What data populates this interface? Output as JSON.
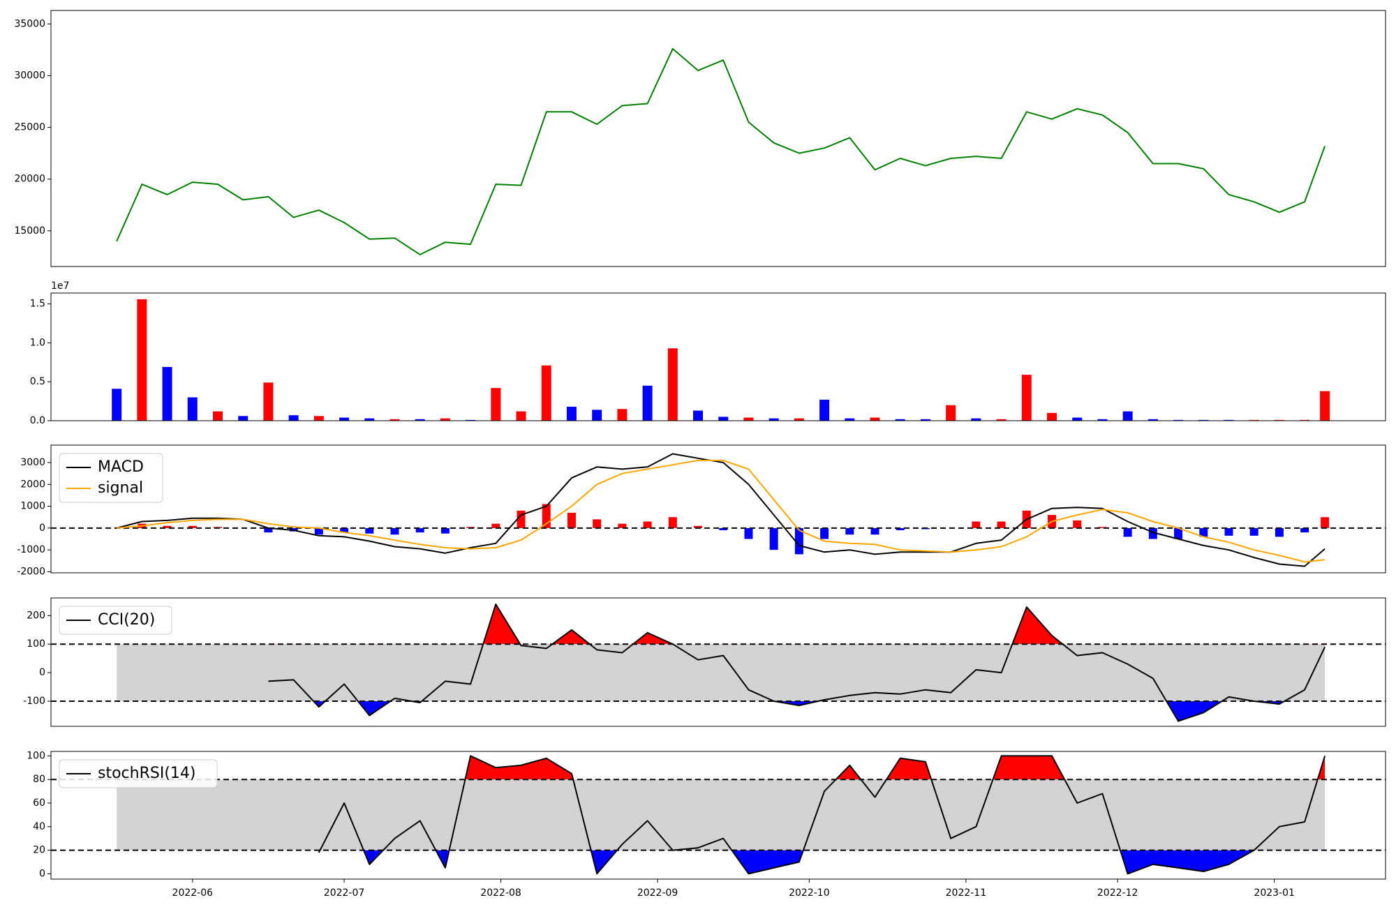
{
  "chart_data": [
    {
      "type": "line",
      "color": "green",
      "x": [
        "2022-05-17",
        "2022-05-22",
        "2022-05-27",
        "2022-06-01",
        "2022-06-06",
        "2022-06-11",
        "2022-06-16",
        "2022-06-21",
        "2022-06-26",
        "2022-07-01",
        "2022-07-06",
        "2022-07-11",
        "2022-07-16",
        "2022-07-21",
        "2022-07-26",
        "2022-07-31",
        "2022-08-05",
        "2022-08-10",
        "2022-08-15",
        "2022-08-20",
        "2022-08-25",
        "2022-08-30",
        "2022-09-04",
        "2022-09-09",
        "2022-09-14",
        "2022-09-19",
        "2022-09-24",
        "2022-09-29",
        "2022-10-04",
        "2022-10-09",
        "2022-10-14",
        "2022-10-19",
        "2022-10-24",
        "2022-10-29",
        "2022-11-03",
        "2022-11-08",
        "2022-11-13",
        "2022-11-18",
        "2022-11-23",
        "2022-11-28",
        "2022-12-03",
        "2022-12-08",
        "2022-12-13",
        "2022-12-18",
        "2022-12-23",
        "2022-12-28",
        "2023-01-02",
        "2023-01-07",
        "2023-01-11"
      ],
      "values": [
        14000,
        19500,
        18500,
        19700,
        19500,
        18000,
        18300,
        16300,
        17000,
        15800,
        14200,
        14300,
        12700,
        13900,
        13700,
        19500,
        19400,
        26500,
        26500,
        25300,
        27100,
        27300,
        32600,
        30500,
        31500,
        25500,
        23500,
        22500,
        23000,
        24000,
        20900,
        22000,
        21300,
        22000,
        22200,
        22000,
        26500,
        25800,
        26800,
        26200,
        24500,
        21500,
        21500,
        21000,
        18500,
        17800,
        16800,
        17800,
        23200
      ],
      "xlim": [
        "2022-05-04",
        "2023-01-23"
      ],
      "ylim": [
        11550,
        36300
      ],
      "yticks": [
        15000,
        20000,
        25000,
        30000,
        35000
      ]
    },
    {
      "type": "bar",
      "offset_label": "1e7",
      "x": [
        "2022-05-17",
        "2022-05-22",
        "2022-05-27",
        "2022-06-01",
        "2022-06-06",
        "2022-06-11",
        "2022-06-16",
        "2022-06-21",
        "2022-06-26",
        "2022-07-01",
        "2022-07-06",
        "2022-07-11",
        "2022-07-16",
        "2022-07-21",
        "2022-07-26",
        "2022-07-31",
        "2022-08-05",
        "2022-08-10",
        "2022-08-15",
        "2022-08-20",
        "2022-08-25",
        "2022-08-30",
        "2022-09-04",
        "2022-09-09",
        "2022-09-14",
        "2022-09-19",
        "2022-09-24",
        "2022-09-29",
        "2022-10-04",
        "2022-10-09",
        "2022-10-14",
        "2022-10-19",
        "2022-10-24",
        "2022-10-29",
        "2022-11-03",
        "2022-11-08",
        "2022-11-13",
        "2022-11-18",
        "2022-11-23",
        "2022-11-28",
        "2022-12-03",
        "2022-12-08",
        "2022-12-13",
        "2022-12-18",
        "2022-12-23",
        "2022-12-28",
        "2023-01-02",
        "2023-01-07",
        "2023-01-11"
      ],
      "values": [
        4100000,
        15600000,
        6900000,
        3000000,
        1200000,
        600000,
        4900000,
        700000,
        600000,
        400000,
        300000,
        200000,
        200000,
        300000,
        100000,
        4200000,
        1200000,
        7100000,
        1800000,
        1400000,
        1500000,
        4500000,
        9300000,
        1300000,
        500000,
        400000,
        300000,
        300000,
        2700000,
        300000,
        400000,
        200000,
        200000,
        2000000,
        300000,
        200000,
        5900000,
        1000000,
        400000,
        200000,
        1200000,
        200000,
        100000,
        100000,
        100000,
        100000,
        100000,
        100000,
        3800000
      ],
      "colors": [
        "blue",
        "red",
        "blue",
        "blue",
        "red",
        "blue",
        "red",
        "blue",
        "red",
        "blue",
        "blue",
        "red",
        "blue",
        "red",
        "blue",
        "red",
        "red",
        "red",
        "blue",
        "blue",
        "red",
        "blue",
        "red",
        "blue",
        "blue",
        "red",
        "blue",
        "red",
        "blue",
        "blue",
        "red",
        "blue",
        "blue",
        "red",
        "blue",
        "red",
        "red",
        "red",
        "blue",
        "blue",
        "blue",
        "blue",
        "blue",
        "blue",
        "blue",
        "red",
        "red",
        "red",
        "red"
      ],
      "xlim": [
        "2022-05-04",
        "2023-01-23"
      ],
      "ylim": [
        0,
        16400000
      ],
      "yticks": [
        {
          "value": 0,
          "label": "0.0"
        },
        {
          "value": 5000000,
          "label": "0.5"
        },
        {
          "value": 10000000,
          "label": "1.0"
        },
        {
          "value": 15000000,
          "label": "1.5"
        }
      ]
    },
    {
      "type": "macd",
      "x": [
        "2022-05-17",
        "2022-05-22",
        "2022-05-27",
        "2022-06-01",
        "2022-06-06",
        "2022-06-11",
        "2022-06-16",
        "2022-06-21",
        "2022-06-26",
        "2022-07-01",
        "2022-07-06",
        "2022-07-11",
        "2022-07-16",
        "2022-07-21",
        "2022-07-26",
        "2022-07-31",
        "2022-08-05",
        "2022-08-10",
        "2022-08-15",
        "2022-08-20",
        "2022-08-25",
        "2022-08-30",
        "2022-09-04",
        "2022-09-09",
        "2022-09-14",
        "2022-09-19",
        "2022-09-24",
        "2022-09-29",
        "2022-10-04",
        "2022-10-09",
        "2022-10-14",
        "2022-10-19",
        "2022-10-24",
        "2022-10-29",
        "2022-11-03",
        "2022-11-08",
        "2022-11-13",
        "2022-11-18",
        "2022-11-23",
        "2022-11-28",
        "2022-12-03",
        "2022-12-08",
        "2022-12-13",
        "2022-12-18",
        "2022-12-23",
        "2022-12-28",
        "2023-01-02",
        "2023-01-07",
        "2023-01-11"
      ],
      "series": [
        {
          "name": "MACD",
          "color": "black",
          "values": [
            0,
            300,
            350,
            450,
            450,
            400,
            0,
            -100,
            -350,
            -400,
            -600,
            -850,
            -950,
            -1150,
            -900,
            -700,
            600,
            1000,
            2300,
            2800,
            2700,
            2800,
            3400,
            3200,
            3000,
            2000,
            600,
            -800,
            -1100,
            -1000,
            -1200,
            -1100,
            -1100,
            -1100,
            -700,
            -550,
            400,
            900,
            950,
            900,
            300,
            -200,
            -500,
            -800,
            -1000,
            -1350,
            -1650,
            -1750,
            -950
          ]
        },
        {
          "name": "signal",
          "color": "orange",
          "values": [
            0,
            100,
            250,
            350,
            400,
            400,
            200,
            50,
            0,
            -200,
            -350,
            -550,
            -750,
            -900,
            -950,
            -900,
            -550,
            200,
            1000,
            2000,
            2500,
            2700,
            2900,
            3100,
            3100,
            2700,
            1300,
            -100,
            -600,
            -700,
            -750,
            -1000,
            -1050,
            -1100,
            -1000,
            -850,
            -400,
            300,
            600,
            850,
            700,
            300,
            0,
            -400,
            -650,
            -1000,
            -1250,
            -1550,
            -1450
          ]
        }
      ],
      "histogram": [
        0,
        200,
        100,
        100,
        50,
        0,
        -200,
        -150,
        -300,
        -200,
        -250,
        -300,
        -200,
        -250,
        50,
        200,
        800,
        1100,
        700,
        400,
        200,
        300,
        500,
        100,
        -100,
        -500,
        -1000,
        -1200,
        -500,
        -300,
        -300,
        -100,
        -50,
        0,
        300,
        300,
        800,
        600,
        350,
        50,
        -400,
        -500,
        -500,
        -400,
        -350,
        -350,
        -400,
        -200,
        500
      ],
      "up_color": "red",
      "down_color": "blue",
      "hlines": [
        0
      ],
      "legend": "upper left",
      "xlim": [
        "2022-05-04",
        "2023-01-23"
      ],
      "ylim": [
        -2050,
        3800
      ],
      "yticks": [
        -2000,
        -1000,
        0,
        1000,
        2000,
        3000
      ]
    },
    {
      "type": "oscillator",
      "x": [
        "2022-05-17",
        "2022-05-22",
        "2022-05-27",
        "2022-06-01",
        "2022-06-06",
        "2022-06-11",
        "2022-06-16",
        "2022-06-21",
        "2022-06-26",
        "2022-07-01",
        "2022-07-06",
        "2022-07-11",
        "2022-07-16",
        "2022-07-21",
        "2022-07-26",
        "2022-07-31",
        "2022-08-05",
        "2022-08-10",
        "2022-08-15",
        "2022-08-20",
        "2022-08-25",
        "2022-08-30",
        "2022-09-04",
        "2022-09-09",
        "2022-09-14",
        "2022-09-19",
        "2022-09-24",
        "2022-09-29",
        "2022-10-04",
        "2022-10-09",
        "2022-10-14",
        "2022-10-19",
        "2022-10-24",
        "2022-10-29",
        "2022-11-03",
        "2022-11-08",
        "2022-11-13",
        "2022-11-18",
        "2022-11-23",
        "2022-11-28",
        "2022-12-03",
        "2022-12-08",
        "2022-12-13",
        "2022-12-18",
        "2022-12-23",
        "2022-12-28",
        "2023-01-02",
        "2023-01-07",
        "2023-01-11"
      ],
      "series": [
        {
          "name": "CCI(20)",
          "color": "black",
          "values": [
            null,
            null,
            null,
            null,
            null,
            null,
            -30,
            -25,
            -120,
            -40,
            -150,
            -90,
            -105,
            -30,
            -40,
            240,
            95,
            85,
            150,
            80,
            70,
            140,
            100,
            45,
            60,
            -60,
            -100,
            -115,
            -95,
            -80,
            -70,
            -75,
            -60,
            -70,
            10,
            0,
            230,
            130,
            60,
            70,
            30,
            -20,
            -170,
            -140,
            -85,
            -100,
            -110,
            -60,
            90
          ]
        }
      ],
      "bands": [
        -100,
        100
      ],
      "above_color": "red",
      "below_color": "blue",
      "band_color": "lightgray",
      "legend": "upper left",
      "xlim": [
        "2022-05-04",
        "2023-01-23"
      ],
      "ylim": [
        -188,
        262
      ],
      "yticks": [
        -100,
        0,
        100,
        200
      ]
    },
    {
      "type": "oscillator",
      "x": [
        "2022-05-17",
        "2022-05-22",
        "2022-05-27",
        "2022-06-01",
        "2022-06-06",
        "2022-06-11",
        "2022-06-16",
        "2022-06-21",
        "2022-06-26",
        "2022-07-01",
        "2022-07-06",
        "2022-07-11",
        "2022-07-16",
        "2022-07-21",
        "2022-07-26",
        "2022-07-31",
        "2022-08-05",
        "2022-08-10",
        "2022-08-15",
        "2022-08-20",
        "2022-08-25",
        "2022-08-30",
        "2022-09-04",
        "2022-09-09",
        "2022-09-14",
        "2022-09-19",
        "2022-09-24",
        "2022-09-29",
        "2022-10-04",
        "2022-10-09",
        "2022-10-14",
        "2022-10-19",
        "2022-10-24",
        "2022-10-29",
        "2022-11-03",
        "2022-11-08",
        "2022-11-13",
        "2022-11-18",
        "2022-11-23",
        "2022-11-28",
        "2022-12-03",
        "2022-12-08",
        "2022-12-13",
        "2022-12-18",
        "2022-12-23",
        "2022-12-28",
        "2023-01-02",
        "2023-01-07",
        "2023-01-11"
      ],
      "series": [
        {
          "name": "stochRSI(14)",
          "color": "black",
          "values": [
            null,
            null,
            null,
            null,
            null,
            null,
            null,
            null,
            18,
            60,
            8,
            30,
            45,
            5,
            100,
            90,
            92,
            98,
            85,
            0,
            25,
            45,
            20,
            22,
            30,
            0,
            5,
            10,
            70,
            92,
            65,
            98,
            95,
            30,
            40,
            100,
            100,
            100,
            60,
            68,
            0,
            8,
            5,
            2,
            8,
            20,
            40,
            44,
            100
          ]
        }
      ],
      "bands": [
        20,
        80
      ],
      "above_color": "red",
      "below_color": "blue",
      "band_color": "lightgray",
      "legend": "upper left",
      "xlim": [
        "2022-05-04",
        "2023-01-23"
      ],
      "ylim": [
        -4.5,
        103.8
      ],
      "yticks": [
        0,
        20,
        40,
        60,
        80,
        100
      ],
      "xticks": [
        "2022-06",
        "2022-07",
        "2022-08",
        "2022-09",
        "2022-10",
        "2022-11",
        "2022-12",
        "2023-01"
      ]
    }
  ]
}
